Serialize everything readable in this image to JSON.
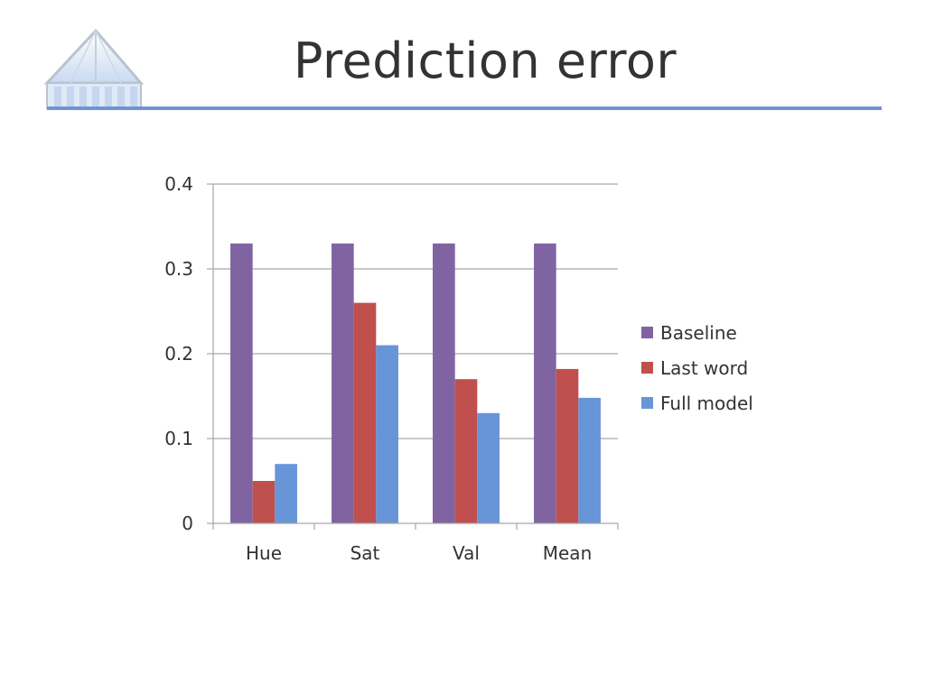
{
  "slide": {
    "title": "Prediction error"
  },
  "logo": {
    "icon": "pavilion-logo-icon"
  },
  "colors": {
    "accent_rule": "#6f95d1",
    "gridline": "#a6a6a6",
    "axis": "#a6a6a6",
    "text": "#333333"
  },
  "chart_data": {
    "type": "bar",
    "title": "",
    "xlabel": "",
    "ylabel": "",
    "categories": [
      "Hue",
      "Sat",
      "Val",
      "Mean"
    ],
    "ylim": [
      0,
      0.4
    ],
    "yticks": [
      0,
      0.1,
      0.2,
      0.3,
      0.4
    ],
    "ytick_labels": [
      "0",
      "0.1",
      "0.2",
      "0.3",
      "0.4"
    ],
    "grid": true,
    "legend_position": "right",
    "series": [
      {
        "name": "Baseline",
        "color": "#8064a2",
        "values": [
          0.33,
          0.33,
          0.33,
          0.33
        ]
      },
      {
        "name": "Last word",
        "color": "#c0504d",
        "values": [
          0.05,
          0.26,
          0.17,
          0.182
        ]
      },
      {
        "name": "Full model",
        "color": "#6795d8",
        "values": [
          0.07,
          0.21,
          0.13,
          0.148
        ]
      }
    ]
  }
}
